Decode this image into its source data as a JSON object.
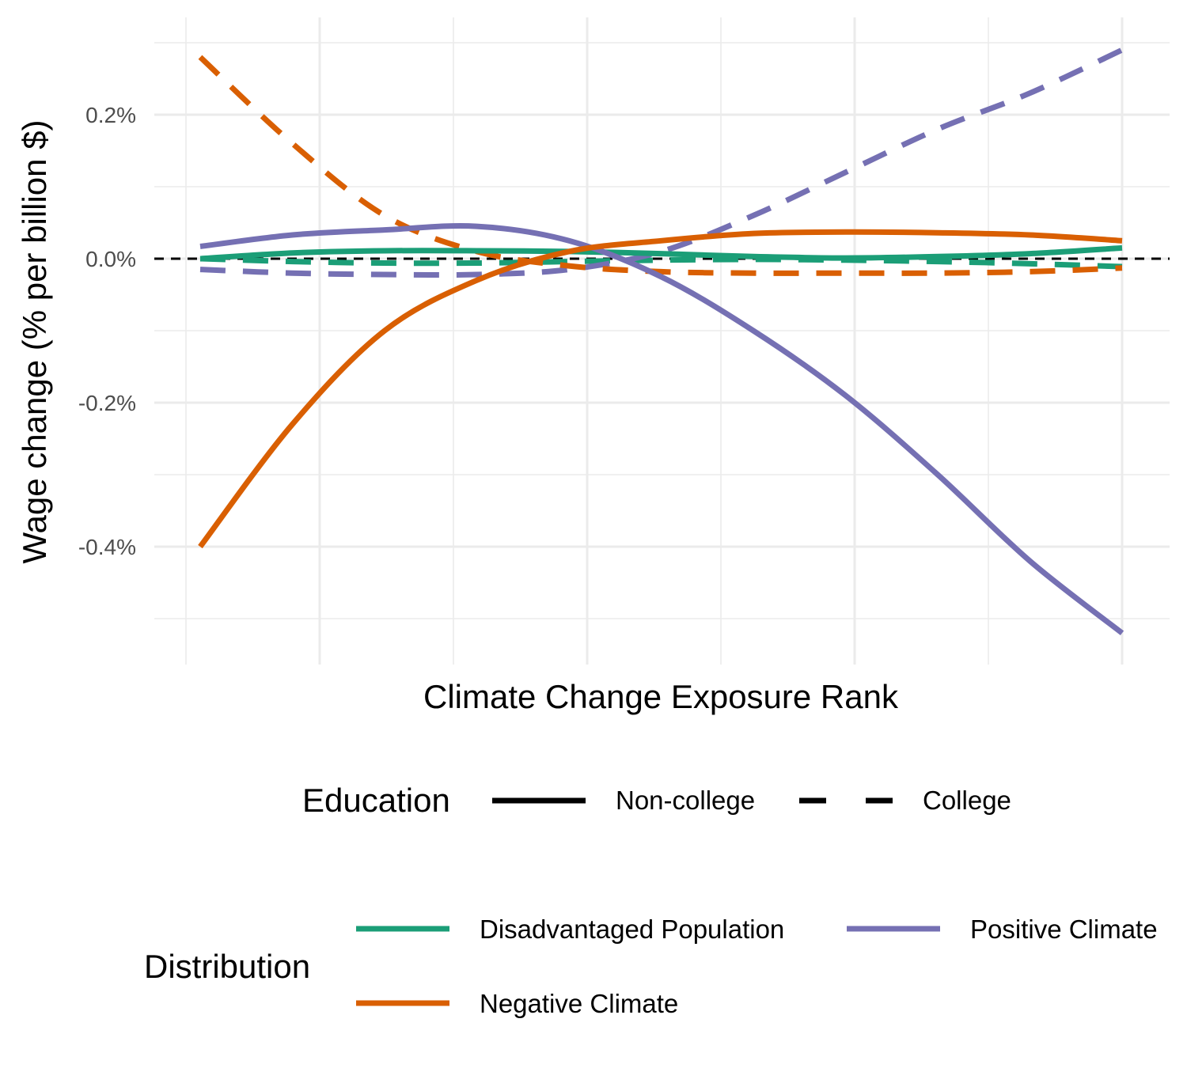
{
  "chart_data": {
    "type": "line",
    "title": "",
    "xlabel": "Climate Change Exposure Rank",
    "ylabel": "Wage change (% per billion $)",
    "xlim": [
      0,
      1
    ],
    "ylim": [
      -0.0052,
      0.0031
    ],
    "y_ticks": [
      {
        "value": 0.002,
        "label": "0.2%"
      },
      {
        "value": 0.0,
        "label": "0.0%"
      },
      {
        "value": -0.002,
        "label": "-0.2%"
      },
      {
        "value": -0.004,
        "label": "-0.4%"
      }
    ],
    "x_tick_labels_shown": false,
    "grid": true,
    "reference_line": {
      "y": 0.0,
      "style": "dashed",
      "color": "#000000"
    },
    "x": [
      0.0,
      0.1,
      0.2,
      0.3,
      0.4,
      0.5,
      0.6,
      0.7,
      0.8,
      0.9,
      1.0
    ],
    "series": [
      {
        "distribution": "Disadvantaged Population",
        "education": "Non-college",
        "color": "#1b9e77",
        "dash": "solid",
        "values": [
          0.0,
          8e-05,
          0.00011,
          0.00011,
          0.0001,
          7e-05,
          3e-05,
          1e-05,
          3e-05,
          7e-05,
          0.00015
        ]
      },
      {
        "distribution": "Disadvantaged Population",
        "education": "College",
        "color": "#1b9e77",
        "dash": "dashed",
        "values": [
          0.0,
          -4e-05,
          -6e-05,
          -6e-05,
          -4e-05,
          -2e-05,
          -1e-05,
          -2e-05,
          -4e-05,
          -7e-05,
          -0.00011
        ]
      },
      {
        "distribution": "Negative Climate",
        "education": "Non-college",
        "color": "#d95f02",
        "dash": "solid",
        "values": [
          -0.004,
          -0.0023,
          -0.001,
          -0.0003,
          0.0001,
          0.00025,
          0.00035,
          0.00037,
          0.00036,
          0.00033,
          0.00025
        ]
      },
      {
        "distribution": "Negative Climate",
        "education": "College",
        "color": "#d95f02",
        "dash": "dashed",
        "values": [
          0.0028,
          0.0016,
          0.0006,
          0.0001,
          -0.0001,
          -0.00018,
          -0.0002,
          -0.0002,
          -0.0002,
          -0.00018,
          -0.00013
        ]
      },
      {
        "distribution": "Positive Climate",
        "education": "Non-college",
        "color": "#7570b3",
        "dash": "solid",
        "values": [
          0.00017,
          0.00033,
          0.0004,
          0.00045,
          0.00025,
          -0.00025,
          -0.001,
          -0.0019,
          -0.003,
          -0.0042,
          -0.0052
        ]
      },
      {
        "distribution": "Positive Climate",
        "education": "College",
        "color": "#7570b3",
        "dash": "dashed",
        "values": [
          -0.00015,
          -0.0002,
          -0.00022,
          -0.00022,
          -0.00015,
          0.0001,
          0.0006,
          0.0012,
          0.0018,
          0.0023,
          0.0029
        ]
      }
    ],
    "legend": {
      "placement": "bottom",
      "education": {
        "title": "Education",
        "entries": [
          {
            "label": "Non-college",
            "dash": "solid",
            "color": "#000000"
          },
          {
            "label": "College",
            "dash": "dashed",
            "color": "#000000"
          }
        ]
      },
      "distribution": {
        "title": "Distribution",
        "entries": [
          {
            "label": "Disadvantaged Population",
            "color": "#1b9e77"
          },
          {
            "label": "Positive Climate",
            "color": "#7570b3"
          },
          {
            "label": "Negative Climate",
            "color": "#d95f02"
          }
        ]
      }
    }
  }
}
